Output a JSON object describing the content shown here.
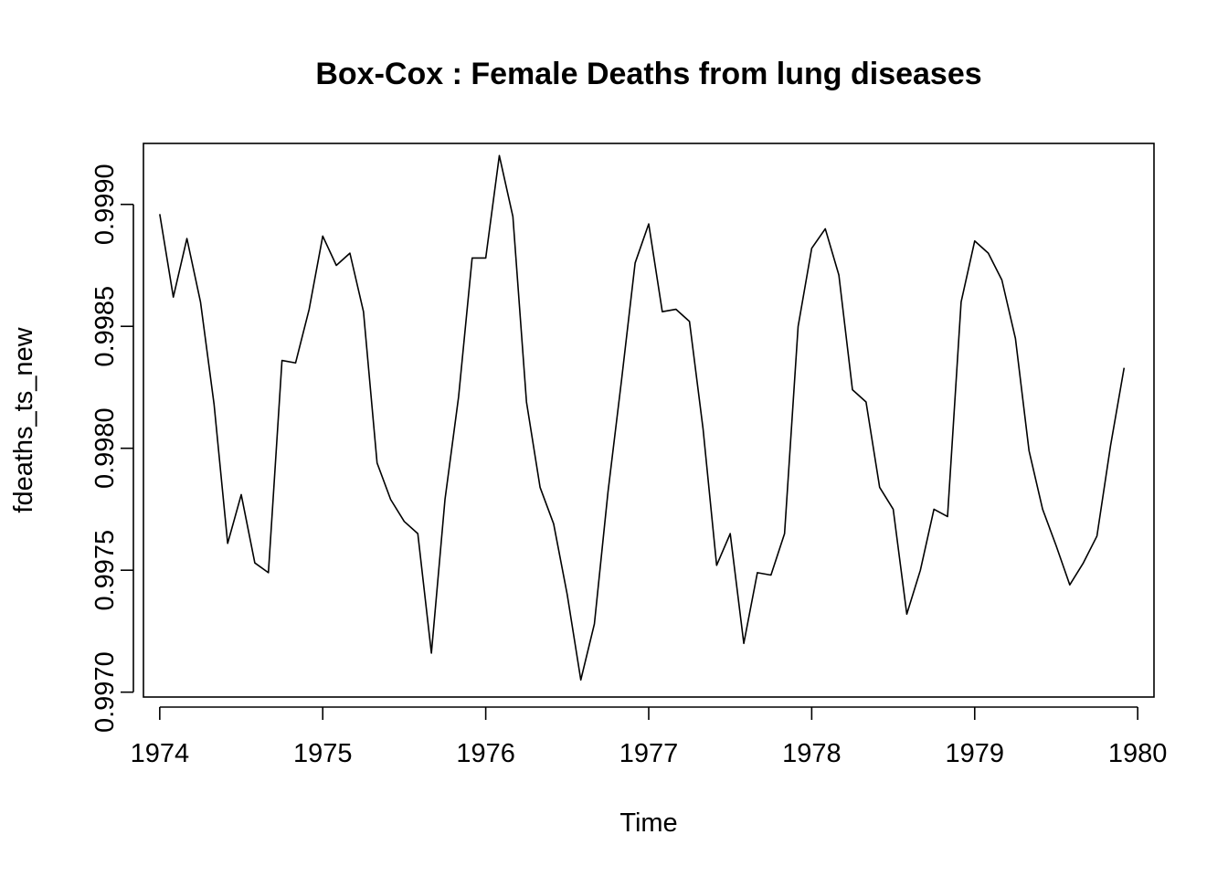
{
  "chart_data": {
    "type": "line",
    "title": "Box-Cox : Female Deaths from lung diseases",
    "xlabel": "Time",
    "ylabel": "fdeaths_ts_new",
    "xlim": [
      1973.9,
      1980.1
    ],
    "ylim": [
      0.99698,
      0.99925
    ],
    "x_ticks": [
      1974,
      1975,
      1976,
      1977,
      1978,
      1979,
      1980
    ],
    "x_tick_labels": [
      "1974",
      "1975",
      "1976",
      "1977",
      "1978",
      "1979",
      "1980"
    ],
    "y_ticks": [
      0.997,
      0.9975,
      0.998,
      0.9985,
      0.999
    ],
    "y_tick_labels": [
      "0.9970",
      "0.9975",
      "0.9980",
      "0.9985",
      "0.9990"
    ],
    "x_start": 1974,
    "frequency": 12,
    "grid": false,
    "line_color": "#000000",
    "series": [
      {
        "values": [
          0.99896,
          0.99862,
          0.99886,
          0.9986,
          0.99818,
          0.99761,
          0.99781,
          0.99753,
          0.99749,
          0.99836,
          0.99835,
          0.99857,
          0.99887,
          0.99875,
          0.9988,
          0.99856,
          0.99794,
          0.99779,
          0.9977,
          0.99765,
          0.99716,
          0.99779,
          0.99821,
          0.99878,
          0.99878,
          0.9992,
          0.99895,
          0.99819,
          0.99784,
          0.99769,
          0.9974,
          0.99705,
          0.99728,
          0.99782,
          0.99828,
          0.99876,
          0.99892,
          0.99856,
          0.99857,
          0.99852,
          0.99808,
          0.99752,
          0.99765,
          0.9972,
          0.99749,
          0.99748,
          0.99765,
          0.9985,
          0.99882,
          0.9989,
          0.99871,
          0.99824,
          0.99819,
          0.99784,
          0.99775,
          0.99732,
          0.9975,
          0.99775,
          0.99772,
          0.9986,
          0.99885,
          0.9988,
          0.99869,
          0.99845,
          0.99799,
          0.99775,
          0.9976,
          0.99744,
          0.99753,
          0.99764,
          0.99801,
          0.99833
        ]
      }
    ]
  }
}
